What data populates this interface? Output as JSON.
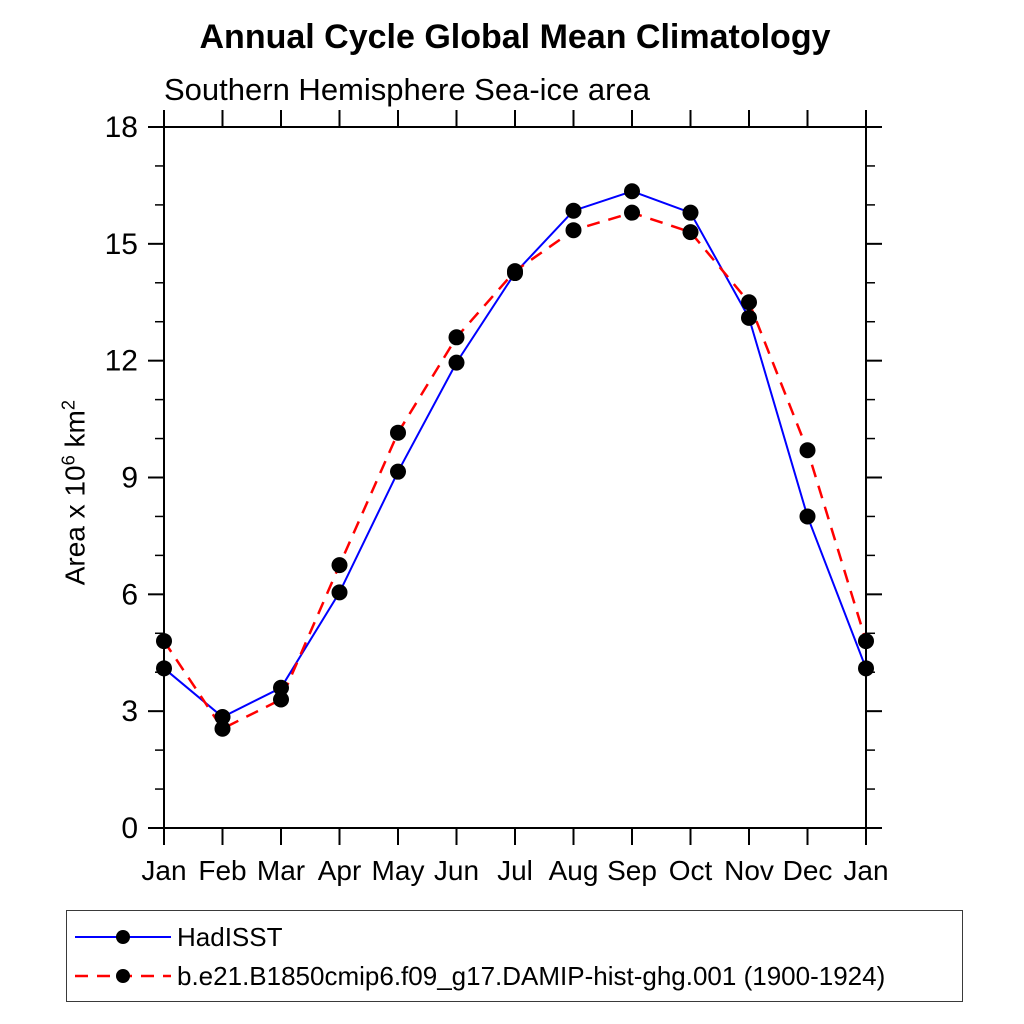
{
  "header": {
    "title": "Annual Cycle Global Mean Climatology",
    "subtitle": "Southern Hemisphere Sea-ice area"
  },
  "ylabel": {
    "prefix": "Area x 10",
    "sup1": "6",
    "mid": " km",
    "sup2": "2"
  },
  "chart_data": {
    "type": "line",
    "title": "Annual Cycle Global Mean Climatology",
    "subtitle": "Southern Hemisphere Sea-ice area",
    "ylabel": "Area x 10^6 km^2",
    "x_labels": [
      "Jan",
      "Feb",
      "Mar",
      "Apr",
      "May",
      "Jun",
      "Jul",
      "Aug",
      "Sep",
      "Oct",
      "Nov",
      "Dec",
      "Jan"
    ],
    "ylim": [
      0,
      18
    ],
    "y_major_ticks": [
      0,
      3,
      6,
      9,
      12,
      15,
      18
    ],
    "y_minor_step": 1,
    "grid": false,
    "legend_position": "bottom-left-box",
    "marker_color": "#000000",
    "axis_color": "#000000",
    "series": [
      {
        "name": "HadISST",
        "color": "#0000ff",
        "style": "solid",
        "values": [
          4.1,
          2.85,
          3.6,
          6.05,
          9.15,
          11.95,
          14.25,
          15.85,
          16.35,
          15.8,
          13.1,
          8.0,
          4.1
        ]
      },
      {
        "name": "b.e21.B1850cmip6.f09_g17.DAMIP-hist-ghg.001 (1900-1924)",
        "color": "#ff0000",
        "style": "dashed",
        "values": [
          4.8,
          2.55,
          3.3,
          6.75,
          10.15,
          12.6,
          14.3,
          15.35,
          15.8,
          15.3,
          13.5,
          9.7,
          4.8
        ]
      }
    ]
  }
}
